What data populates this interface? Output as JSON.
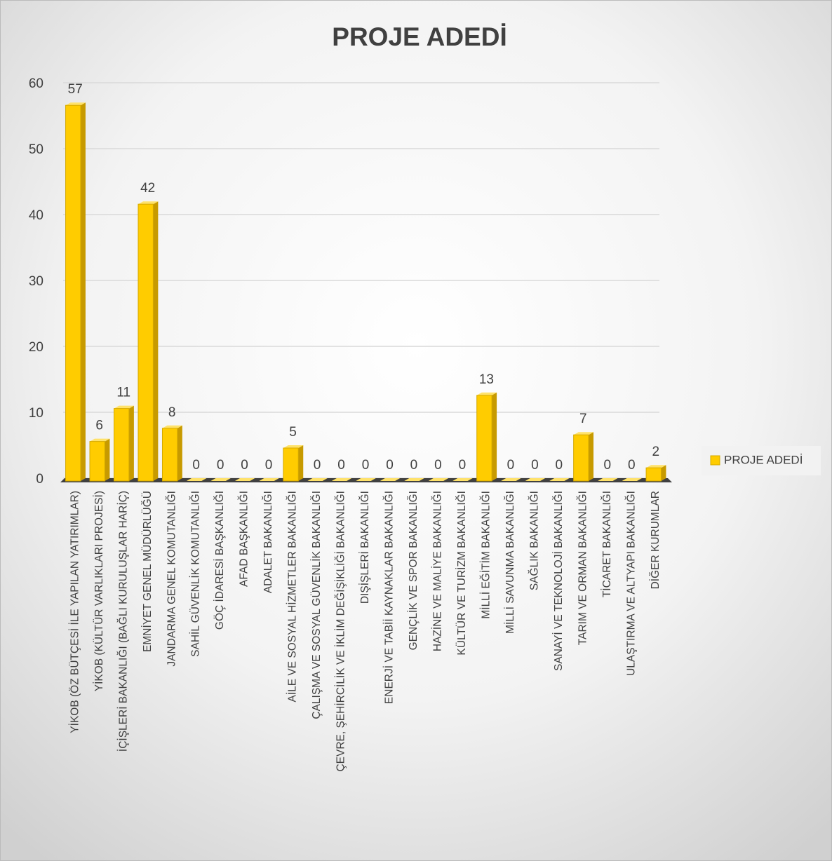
{
  "chart_data": {
    "type": "bar",
    "title": "PROJE ADEDİ",
    "categories": [
      "YİKOB (ÖZ BÜTÇESİ İLE YAPILAN YATIRIMLAR)",
      "YİKOB (KÜLTÜR VARLIKLARI PROJESİ)",
      "İÇİŞLERİ BAKANLIĞI (BAĞLI KURULUŞLAR HARİÇ)",
      "EMNİYET GENEL MÜDÜRLÜĞÜ",
      "JANDARMA GENEL KOMUTANLIĞI",
      "SAHİL GÜVENLİK KOMUTANLIĞI",
      "GÖÇ İDARESİ BAŞKANLIĞI",
      "AFAD BAŞKANLIĞI",
      "ADALET BAKANLIĞI",
      "AİLE VE SOSYAL HİZMETLER BAKANLIĞI",
      "ÇALIŞMA VE SOSYAL GÜVENLİK BAKANLIĞI",
      "ÇEVRE, ŞEHİRCİLİK VE İKLİM DEĞİŞİKLİĞİ BAKANLIĞI",
      "DIŞİŞLERİ BAKANLIĞI",
      "ENERJİ VE TABİİ KAYNAKLAR BAKANLIĞI",
      "GENÇLİK VE SPOR BAKANLIĞI",
      "HAZİNE VE MALİYE BAKANLIĞI",
      "KÜLTÜR VE TURİZM BAKANLIĞI",
      "MİLLİ EĞİTİM BAKANLIĞI",
      "MİLLİ SAVUNMA BAKANLIĞI",
      "SAĞLIK BAKANLIĞI",
      "SANAYİ VE TEKNOLOJİ BAKANLIĞI",
      "TARIM VE ORMAN BAKANLIĞI",
      "TİCARET BAKANLIĞI",
      "ULAŞTIRMA VE ALTYAPI BAKANLIĞI",
      "DİĞER KURUMLAR"
    ],
    "series": [
      {
        "name": "PROJE ADEDİ",
        "color": "#ffcc00",
        "values": [
          57,
          6,
          11,
          42,
          8,
          0,
          0,
          0,
          0,
          5,
          0,
          0,
          0,
          0,
          0,
          0,
          0,
          13,
          0,
          0,
          0,
          7,
          0,
          0,
          2
        ]
      }
    ],
    "ylim": [
      0,
      60
    ],
    "yticks": [
      0,
      10,
      20,
      30,
      40,
      50,
      60
    ],
    "grid": true,
    "legend": "right"
  }
}
